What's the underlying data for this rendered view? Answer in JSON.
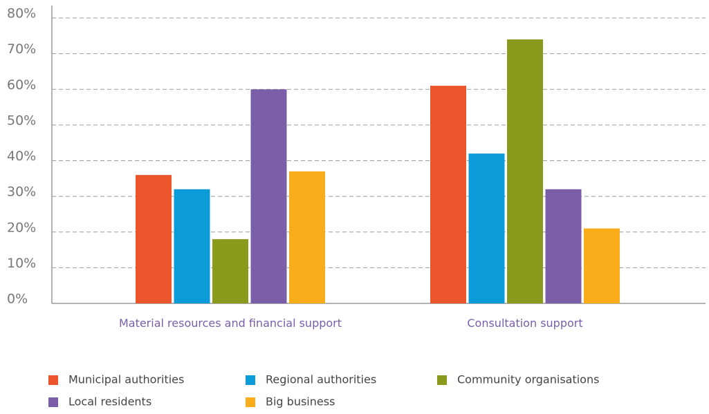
{
  "chart_data": {
    "type": "bar",
    "categories": [
      "Material resources and financial support",
      "Consultation support"
    ],
    "series": [
      {
        "name": "Municipal authorities",
        "color": "#ea552b",
        "values": [
          36,
          61
        ]
      },
      {
        "name": "Regional authorities",
        "color": "#0b9bd9",
        "values": [
          32,
          42
        ]
      },
      {
        "name": "Community organisations",
        "color": "#8b9a1c",
        "values": [
          18,
          74
        ]
      },
      {
        "name": "Local residents",
        "color": "#7a5ea8",
        "values": [
          60,
          32
        ]
      },
      {
        "name": "Big business",
        "color": "#f9ad1b",
        "values": [
          37,
          21
        ]
      }
    ],
    "ylim": [
      0,
      80
    ],
    "yticks": [
      {
        "value": 0,
        "label": "0%"
      },
      {
        "value": 10,
        "label": "10%"
      },
      {
        "value": 20,
        "label": "20%"
      },
      {
        "value": 30,
        "label": "30%"
      },
      {
        "value": 40,
        "label": "40%"
      },
      {
        "value": 50,
        "label": "50%"
      },
      {
        "value": 60,
        "label": "60%"
      },
      {
        "value": 70,
        "label": "70%"
      },
      {
        "value": 80,
        "label": "80%"
      }
    ],
    "grid": true,
    "legend": "bottom"
  }
}
